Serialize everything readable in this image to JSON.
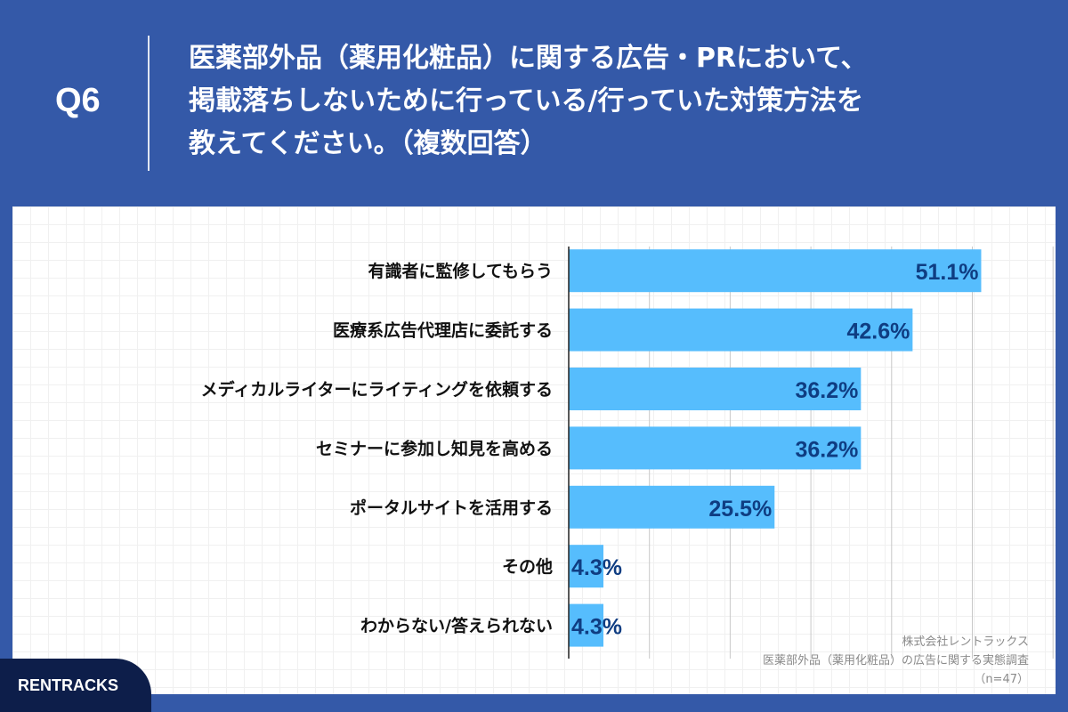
{
  "header": {
    "q_label": "Q6",
    "question_lines": [
      "医薬部外品（薬用化粧品）に関する広告・PRにおいて、",
      "掲載落ちしないために行っている/行っていた対策方法を",
      "教えてください。（複数回答）"
    ]
  },
  "chart_data": {
    "type": "bar",
    "orientation": "horizontal",
    "unit": "%",
    "categories": [
      "有識者に監修してもらう",
      "医療系広告代理店に委託する",
      "メディカルライターにライティングを依頼する",
      "セミナーに参加し知見を高める",
      "ポータルサイトを活用する",
      "その他",
      "わからない/答えられない"
    ],
    "values": [
      51.1,
      42.6,
      36.2,
      36.2,
      25.5,
      4.3,
      4.3
    ],
    "value_labels": [
      "51.1%",
      "42.6%",
      "36.2%",
      "36.2%",
      "25.5%",
      "4.3%",
      "4.3%"
    ],
    "xlim": [
      0,
      60
    ],
    "grid": true,
    "colors": {
      "bar": "#56bdfd",
      "label": "#0f3d82",
      "grid": "#c8c8c8"
    }
  },
  "footer": {
    "company": "株式会社レントラックス",
    "survey": "医薬部外品（薬用化粧品）の広告に関する実態調査",
    "sample": "（n=47）"
  },
  "brand": {
    "name": "RENTRACKS"
  },
  "colors": {
    "header_bg": "#3459a8",
    "brand_bg": "#0d1e4a"
  }
}
